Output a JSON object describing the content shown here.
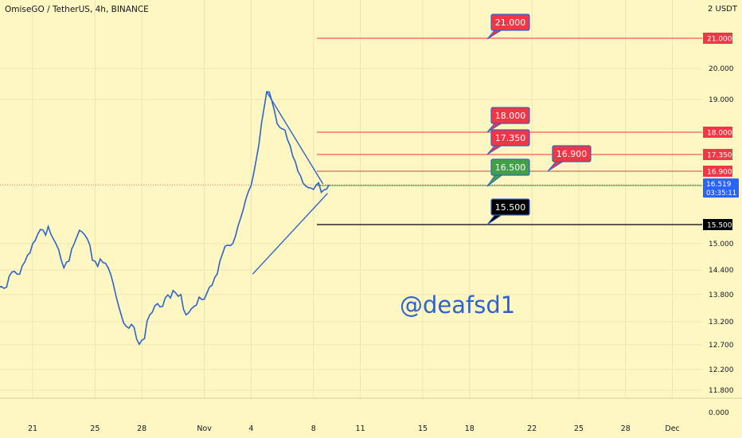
{
  "chart_data": {
    "type": "line",
    "title": "OmiseGO / TetherUS, 4h, BINANCE",
    "currency": "USDT",
    "price_axis_top_label": "2 USDT",
    "watermark": "@deafsd1",
    "y_ticks": [
      "20.000",
      "19.000",
      "15.000",
      "14.400",
      "13.800",
      "13.200",
      "12.700",
      "12.200",
      "11.800",
      "0.000"
    ],
    "x_ticks": [
      "21",
      "25",
      "28",
      "Nov",
      "4",
      "8",
      "11",
      "15",
      "18",
      "22",
      "25",
      "28",
      "Dec"
    ],
    "series": [
      {
        "values": [
          {
            "t": "Oct 18",
            "v": 14.3
          },
          {
            "t": "Oct 19",
            "v": 14.0
          },
          {
            "t": "Oct 20",
            "v": 14.3
          },
          {
            "t": "Oct 21",
            "v": 15.0
          },
          {
            "t": "Oct 22",
            "v": 15.45
          },
          {
            "t": "Oct 23",
            "v": 14.45
          },
          {
            "t": "Oct 24",
            "v": 15.35
          },
          {
            "t": "Oct 25",
            "v": 14.6
          },
          {
            "t": "Oct 26",
            "v": 14.3
          },
          {
            "t": "Oct 27",
            "v": 13.1
          },
          {
            "t": "Oct 28",
            "v": 12.8
          },
          {
            "t": "Oct 29",
            "v": 13.6
          },
          {
            "t": "Oct 30",
            "v": 13.9
          },
          {
            "t": "Oct 31",
            "v": 13.4
          },
          {
            "t": "Nov 1",
            "v": 13.7
          },
          {
            "t": "Nov 2",
            "v": 14.6
          },
          {
            "t": "Nov 3",
            "v": 15.2
          },
          {
            "t": "Nov 4",
            "v": 16.5
          },
          {
            "t": "Nov 5",
            "v": 19.25
          },
          {
            "t": "Nov 6",
            "v": 18.1
          },
          {
            "t": "Nov 7",
            "v": 16.9
          },
          {
            "t": "Nov 8",
            "v": 16.4
          },
          {
            "t": "Nov 9",
            "v": 16.52
          }
        ]
      }
    ],
    "current_price": {
      "value": "16.519",
      "timer": "03:35:11",
      "color": "#2962ff"
    },
    "horizontal_levels": [
      {
        "value": 21.0,
        "label": "21.000",
        "color": "#f23645"
      },
      {
        "value": 18.0,
        "label": "18.000",
        "color": "#f23645"
      },
      {
        "value": 17.35,
        "label": "17.350",
        "color": "#f23645"
      },
      {
        "value": 16.9,
        "label": "16.900",
        "color": "#f23645"
      },
      {
        "value": 16.5,
        "label": "16.500",
        "color": "#43a047"
      },
      {
        "value": 15.5,
        "label": "15.500",
        "color": "#000000"
      }
    ],
    "callouts": [
      {
        "text": "21.000",
        "color": "#f23645"
      },
      {
        "text": "18.000",
        "color": "#f23645"
      },
      {
        "text": "17.350",
        "color": "#f23645"
      },
      {
        "text": "16.500",
        "color": "#43a047"
      },
      {
        "text": "15.500",
        "color": "#000000"
      },
      {
        "text": "16.900",
        "color": "#f23645"
      }
    ],
    "triangle_pattern": {
      "start": "Nov 4",
      "apex": "Nov 9"
    }
  }
}
